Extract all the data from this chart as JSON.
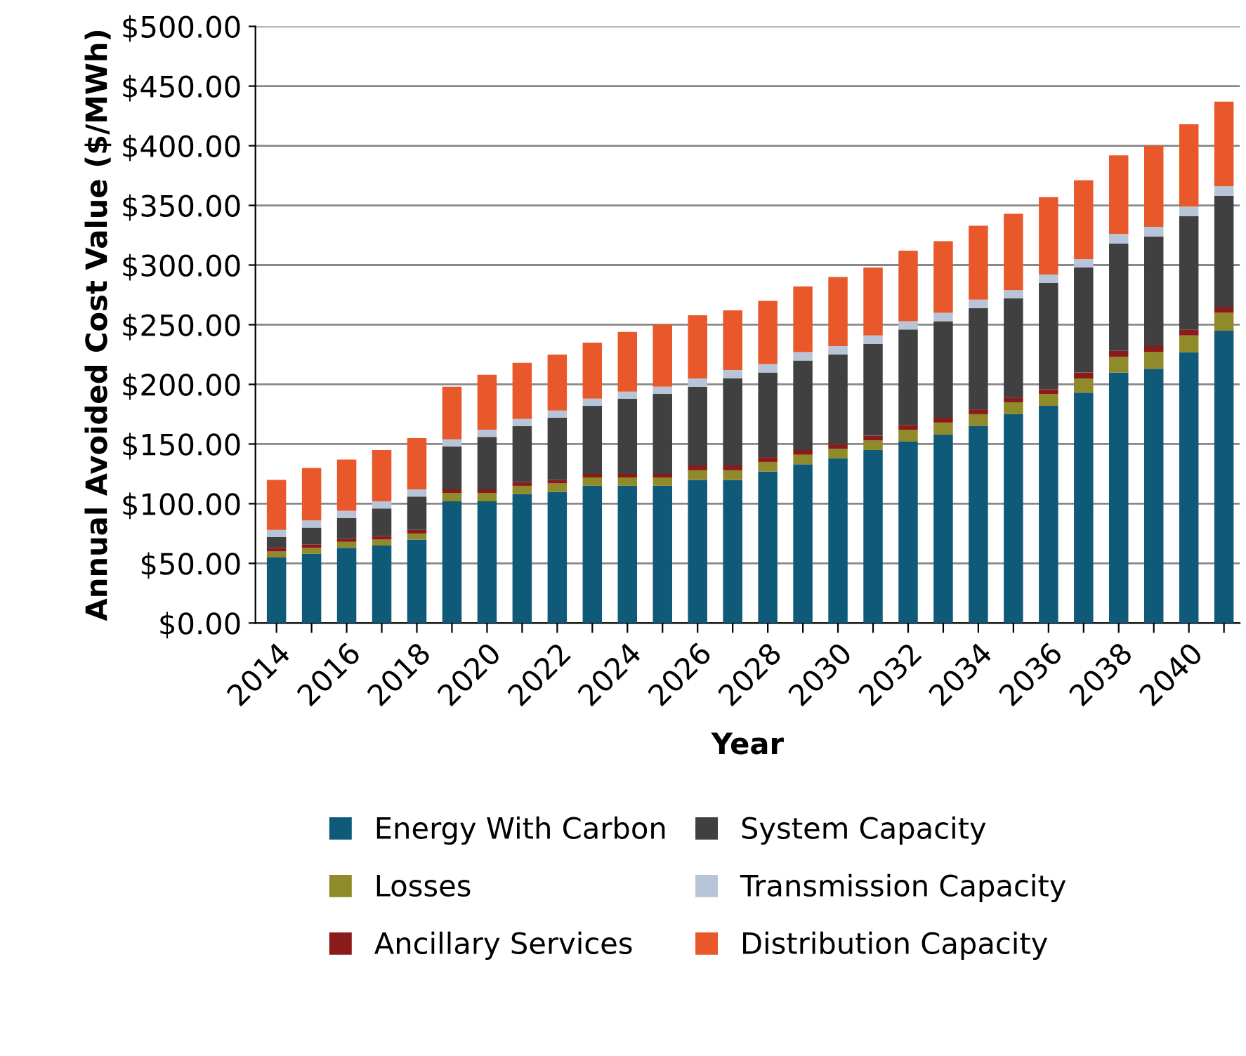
{
  "chart_data": {
    "type": "bar",
    "stacked": true,
    "xlabel": "Year",
    "ylabel": "Annual Avoided Cost Value ($/MWh)",
    "categories": [
      "2014",
      null,
      "2016",
      null,
      "2018",
      null,
      "2020",
      null,
      "2022",
      null,
      "2024",
      null,
      "2026",
      null,
      "2028",
      null,
      "2030",
      null,
      "2032",
      null,
      "2034",
      null,
      "2036",
      null,
      "2038",
      null,
      "2040",
      null
    ],
    "series": [
      {
        "name": "Energy With Carbon",
        "color": "#0e5a78",
        "values": [
          55,
          58,
          63,
          65,
          70,
          102,
          102,
          108,
          110,
          115,
          115,
          115,
          120,
          120,
          127,
          133,
          138,
          145,
          152,
          158,
          165,
          175,
          182,
          193,
          210,
          213,
          227,
          245
        ]
      },
      {
        "name": "Losses",
        "color": "#8f8a2a",
        "values": [
          5,
          5,
          5,
          5,
          5,
          7,
          7,
          7,
          7,
          7,
          7,
          7,
          8,
          8,
          8,
          8,
          8,
          8,
          10,
          10,
          10,
          10,
          10,
          12,
          13,
          14,
          14,
          15
        ]
      },
      {
        "name": "Ancillary Services",
        "color": "#8b1a1a",
        "values": [
          3,
          3,
          3,
          3,
          3,
          3,
          3,
          3,
          3,
          3,
          3,
          3,
          4,
          4,
          4,
          4,
          4,
          4,
          4,
          4,
          4,
          4,
          4,
          5,
          5,
          5,
          5,
          5
        ]
      },
      {
        "name": "System Capacity",
        "color": "#404040",
        "values": [
          9,
          14,
          17,
          23,
          28,
          36,
          44,
          47,
          52,
          57,
          63,
          67,
          66,
          73,
          71,
          75,
          75,
          77,
          80,
          81,
          85,
          83,
          89,
          88,
          90,
          92,
          95,
          93
        ]
      },
      {
        "name": "Transmission Capacity",
        "color": "#b8c4d8",
        "values": [
          6,
          6,
          6,
          6,
          6,
          6,
          6,
          6,
          6,
          6,
          6,
          6,
          7,
          7,
          7,
          7,
          7,
          7,
          7,
          7,
          7,
          7,
          7,
          7,
          8,
          8,
          8,
          8
        ]
      },
      {
        "name": "Distribution Capacity",
        "color": "#e8582a",
        "values": [
          42,
          44,
          43,
          43,
          43,
          44,
          46,
          47,
          47,
          47,
          50,
          52,
          53,
          50,
          53,
          55,
          58,
          57,
          59,
          60,
          62,
          64,
          65,
          66,
          66,
          68,
          69,
          71
        ]
      }
    ],
    "ylim": [
      0,
      500
    ],
    "yticks": [
      {
        "value": 0,
        "label": "$0.00"
      },
      {
        "value": 50,
        "label": "$50.00"
      },
      {
        "value": 100,
        "label": "$100.00"
      },
      {
        "value": 150,
        "label": "$150.00"
      },
      {
        "value": 200,
        "label": "$200.00"
      },
      {
        "value": 250,
        "label": "$250.00"
      },
      {
        "value": 300,
        "label": "$300.00"
      },
      {
        "value": 350,
        "label": "$350.00"
      },
      {
        "value": 400,
        "label": "$400.00"
      },
      {
        "value": 450,
        "label": "$450.00"
      },
      {
        "value": 500,
        "label": "$500.00"
      }
    ],
    "grid": "y",
    "legend": "bottom"
  }
}
